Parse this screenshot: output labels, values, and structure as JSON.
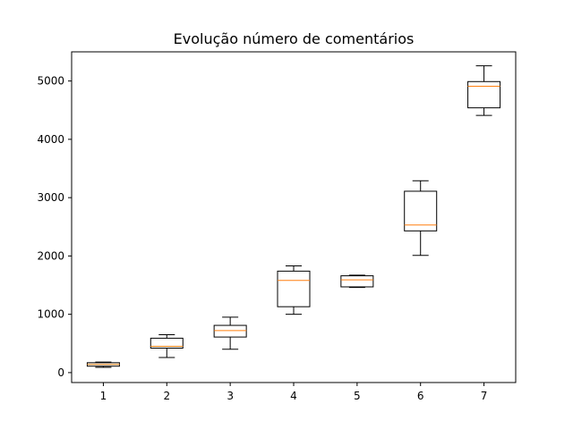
{
  "chart_data": {
    "type": "box",
    "title": "Evolução número de comentários",
    "xlabel": "",
    "ylabel": "",
    "categories": [
      "1",
      "2",
      "3",
      "4",
      "5",
      "6",
      "7"
    ],
    "yticks": [
      0,
      1000,
      2000,
      3000,
      4000,
      5000
    ],
    "ylim": [
      -170,
      5500
    ],
    "grid": false,
    "colors": {
      "box": "#000000",
      "median": "#ff7f0e",
      "background": "#ffffff"
    },
    "boxes": [
      {
        "label": "1",
        "whisker_low": 90,
        "q1": 110,
        "median": 140,
        "q3": 170,
        "whisker_high": 180
      },
      {
        "label": "2",
        "whisker_low": 260,
        "q1": 420,
        "median": 450,
        "q3": 590,
        "whisker_high": 650
      },
      {
        "label": "3",
        "whisker_low": 400,
        "q1": 610,
        "median": 720,
        "q3": 810,
        "whisker_high": 950
      },
      {
        "label": "4",
        "whisker_low": 1000,
        "q1": 1130,
        "median": 1580,
        "q3": 1740,
        "whisker_high": 1830
      },
      {
        "label": "5",
        "whisker_low": 1460,
        "q1": 1470,
        "median": 1590,
        "q3": 1660,
        "whisker_high": 1670
      },
      {
        "label": "6",
        "whisker_low": 2010,
        "q1": 2430,
        "median": 2530,
        "q3": 3110,
        "whisker_high": 3290
      },
      {
        "label": "7",
        "whisker_low": 4410,
        "q1": 4540,
        "median": 4910,
        "q3": 4990,
        "whisker_high": 5260
      }
    ]
  }
}
